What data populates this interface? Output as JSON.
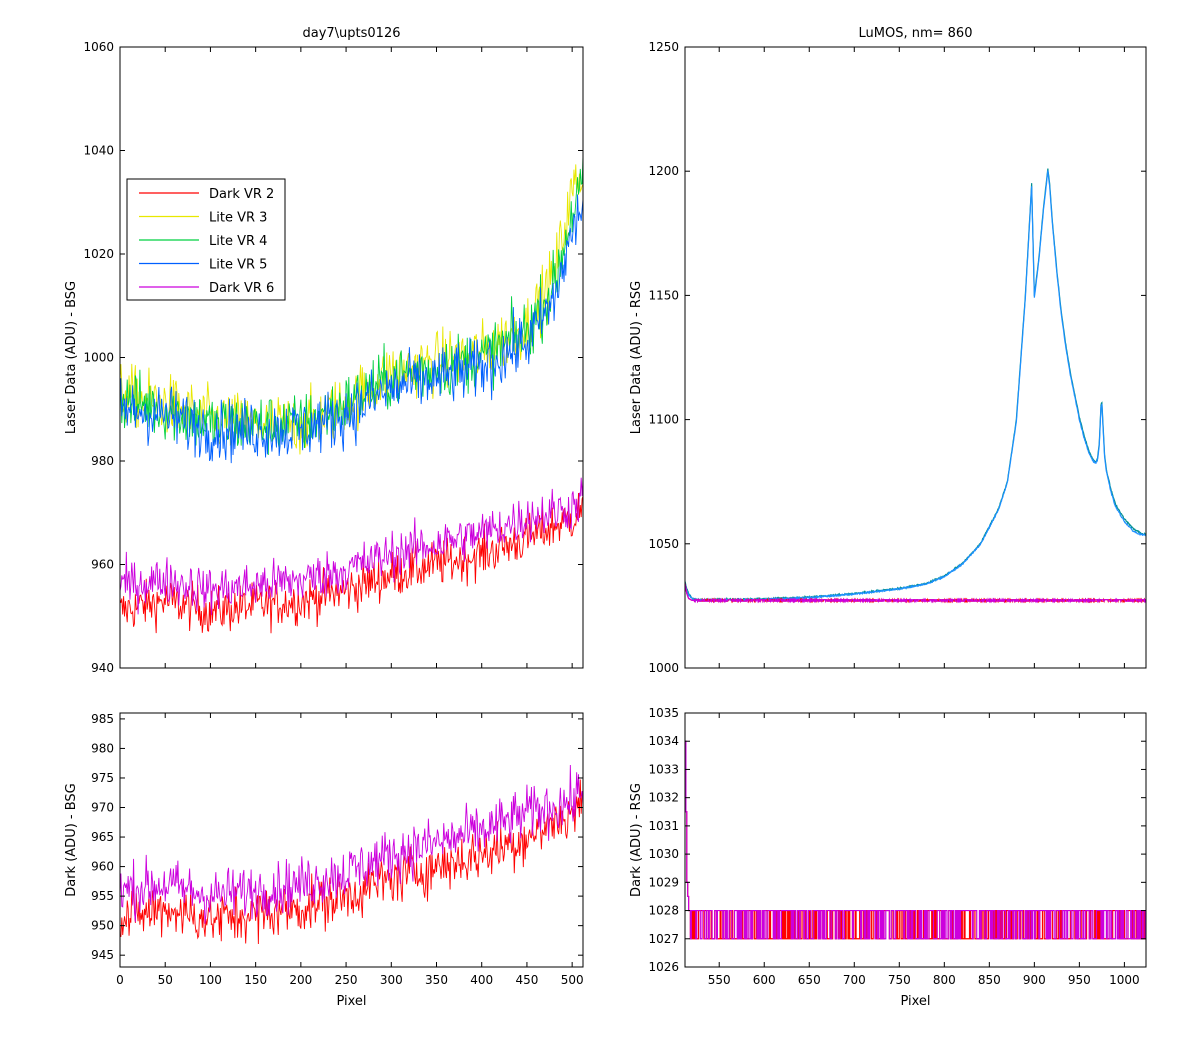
{
  "chart_data": [
    {
      "id": "bsg_laser",
      "type": "line",
      "title": "day7\\upts0126",
      "xlabel": "",
      "ylabel": "Laser Data (ADU) - BSG",
      "xlim": [
        0,
        512
      ],
      "ylim": [
        940,
        1060
      ],
      "yticks": [
        940,
        960,
        980,
        1000,
        1020,
        1040,
        1060
      ],
      "legend": {
        "placement": "upper-left",
        "entries": [
          "Dark VR 2",
          "Lite VR 3",
          "Lite VR 4",
          "Lite VR 5",
          "Dark VR 6"
        ]
      },
      "series": [
        {
          "name": "Dark VR 2",
          "color": "#ff0000",
          "noise": "dense",
          "x": [
            0,
            50,
            100,
            150,
            200,
            250,
            300,
            350,
            400,
            450,
            500,
            512
          ],
          "values": [
            951,
            953,
            951,
            952,
            953,
            955,
            958,
            960,
            962,
            965,
            969,
            971
          ]
        },
        {
          "name": "Lite VR 3",
          "color": "#e8e800",
          "noise": "dense",
          "x": [
            0,
            50,
            100,
            150,
            200,
            250,
            300,
            350,
            400,
            450,
            480,
            500,
            512
          ],
          "values": [
            993,
            991,
            988,
            987,
            987,
            991,
            997,
            999,
            1001,
            1006,
            1016,
            1032,
            1036
          ]
        },
        {
          "name": "Lite VR 4",
          "color": "#00d040",
          "noise": "dense",
          "x": [
            0,
            50,
            100,
            150,
            200,
            250,
            300,
            350,
            400,
            450,
            480,
            500,
            512
          ],
          "values": [
            992,
            990,
            987,
            987,
            987,
            991,
            996,
            998,
            1000,
            1005,
            1014,
            1028,
            1034
          ]
        },
        {
          "name": "Lite VR 5",
          "color": "#0060ff",
          "noise": "dense",
          "x": [
            0,
            50,
            100,
            150,
            200,
            250,
            300,
            350,
            400,
            450,
            480,
            500,
            512
          ],
          "values": [
            990,
            989,
            986,
            986,
            986,
            989,
            994,
            996,
            998,
            1003,
            1011,
            1024,
            1030
          ]
        },
        {
          "name": "Dark VR 6",
          "color": "#cc00dd",
          "noise": "dense",
          "x": [
            0,
            50,
            100,
            150,
            200,
            250,
            300,
            350,
            400,
            450,
            500,
            512
          ],
          "values": [
            956,
            957,
            955,
            956,
            957,
            959,
            962,
            964,
            966,
            969,
            971,
            973
          ]
        }
      ]
    },
    {
      "id": "rsg_laser",
      "type": "line",
      "title": "LuMOS, nm= 860",
      "xlabel": "",
      "ylabel": "Laser Data (ADU) - RSG",
      "xlim": [
        512,
        1024
      ],
      "ylim": [
        1000,
        1250
      ],
      "yticks": [
        1000,
        1050,
        1100,
        1150,
        1200,
        1250
      ],
      "series": [
        {
          "name": "Lite VR 3",
          "color": "#009090",
          "x": [
            512,
            514,
            516,
            520,
            525,
            550,
            600,
            650,
            700,
            750,
            780,
            800,
            820,
            840,
            860,
            870,
            880,
            890,
            897,
            900,
            905,
            910,
            915,
            917,
            920,
            925,
            930,
            935,
            940,
            945,
            950,
            955,
            960,
            965,
            968,
            970,
            972,
            974,
            975,
            976,
            978,
            980,
            985,
            990,
            1000,
            1010,
            1020,
            1024
          ],
          "values": [
            1035,
            1032,
            1030,
            1028,
            1027.5,
            1027.5,
            1027.8,
            1028.5,
            1030,
            1032,
            1034,
            1037,
            1042,
            1050,
            1064,
            1075,
            1100,
            1150,
            1195,
            1150,
            1165,
            1185,
            1201,
            1195,
            1180,
            1160,
            1143,
            1130,
            1119,
            1110,
            1101,
            1094,
            1088,
            1084,
            1083,
            1084,
            1090,
            1106,
            1107,
            1100,
            1086,
            1080,
            1072,
            1066,
            1060,
            1056,
            1054,
            1054
          ]
        },
        {
          "name": "Lite VR 5",
          "color": "#1e90ff",
          "x": [
            512,
            514,
            516,
            520,
            525,
            550,
            600,
            650,
            700,
            750,
            780,
            800,
            820,
            840,
            860,
            870,
            880,
            890,
            897,
            900,
            905,
            910,
            915,
            917,
            920,
            925,
            930,
            935,
            940,
            945,
            950,
            955,
            960,
            965,
            968,
            970,
            972,
            974,
            975,
            976,
            978,
            980,
            985,
            990,
            1000,
            1010,
            1020,
            1024
          ],
          "values": [
            1034,
            1031,
            1029.5,
            1027.8,
            1027.3,
            1027.3,
            1027.6,
            1028.3,
            1029.8,
            1031.8,
            1033.8,
            1036.8,
            1041.8,
            1049.7,
            1063.5,
            1074.5,
            1099,
            1149,
            1194,
            1149,
            1164,
            1184,
            1200,
            1194,
            1179,
            1159,
            1142,
            1129,
            1118,
            1109,
            1100,
            1093,
            1087,
            1083.5,
            1082.5,
            1083.5,
            1089,
            1105,
            1106,
            1099,
            1085,
            1079,
            1071,
            1065,
            1059,
            1055,
            1053.5,
            1053.5
          ]
        },
        {
          "name": "Dark VR 2",
          "color": "#ff0000",
          "x": [
            512,
            514,
            516,
            520,
            1024
          ],
          "values": [
            1034,
            1030,
            1028,
            1027.2,
            1027.2
          ]
        },
        {
          "name": "Dark VR 6",
          "color": "#cc00dd",
          "x": [
            512,
            514,
            516,
            520,
            1024
          ],
          "values": [
            1034,
            1030,
            1028,
            1027.2,
            1027.2
          ]
        }
      ]
    },
    {
      "id": "bsg_dark",
      "type": "line",
      "title": "",
      "xlabel": "Pixel",
      "ylabel": "Dark (ADU) - BSG",
      "xlim": [
        0,
        512
      ],
      "ylim": [
        943,
        986
      ],
      "xticks": [
        0,
        50,
        100,
        150,
        200,
        250,
        300,
        350,
        400,
        450,
        500
      ],
      "yticks": [
        945,
        950,
        955,
        960,
        965,
        970,
        975,
        980,
        985
      ],
      "series": [
        {
          "name": "Dark VR 2",
          "color": "#ff0000",
          "noise": "dense",
          "x": [
            0,
            50,
            100,
            150,
            200,
            250,
            300,
            350,
            400,
            450,
            500,
            512
          ],
          "values": [
            951,
            953,
            951,
            952,
            953,
            955,
            958,
            960,
            962,
            965,
            969,
            971
          ]
        },
        {
          "name": "Dark VR 6",
          "color": "#cc00dd",
          "noise": "dense",
          "x": [
            0,
            50,
            100,
            150,
            200,
            250,
            300,
            350,
            400,
            450,
            500,
            512
          ],
          "values": [
            956,
            957,
            955,
            956,
            957,
            959,
            962,
            964,
            966,
            969,
            971,
            973
          ]
        }
      ]
    },
    {
      "id": "rsg_dark",
      "type": "line",
      "title": "",
      "xlabel": "Pixel",
      "ylabel": "Dark (ADU) - RSG",
      "xlim": [
        512,
        1024
      ],
      "ylim": [
        1026,
        1035
      ],
      "xticks": [
        550,
        600,
        650,
        700,
        750,
        800,
        850,
        900,
        950,
        1000
      ],
      "yticks": [
        1026,
        1027,
        1028,
        1029,
        1030,
        1031,
        1032,
        1033,
        1034,
        1035
      ],
      "series": [
        {
          "name": "Dark VR 2",
          "color": "#ff0000",
          "quantized": [
            1027,
            1028
          ],
          "x": [
            512,
            513,
            514,
            515,
            516,
            517,
            518,
            1024
          ],
          "values": [
            1034,
            1031.5,
            1029,
            1028.5,
            1028,
            1028,
            1027,
            1027
          ]
        },
        {
          "name": "Dark VR 6",
          "color": "#cc00dd",
          "quantized": [
            1027,
            1028
          ],
          "x": [
            512,
            513,
            514,
            515,
            516,
            517,
            518,
            1024
          ],
          "values": [
            1034,
            1031.5,
            1029,
            1028.5,
            1028,
            1028,
            1027,
            1027
          ]
        }
      ]
    }
  ]
}
